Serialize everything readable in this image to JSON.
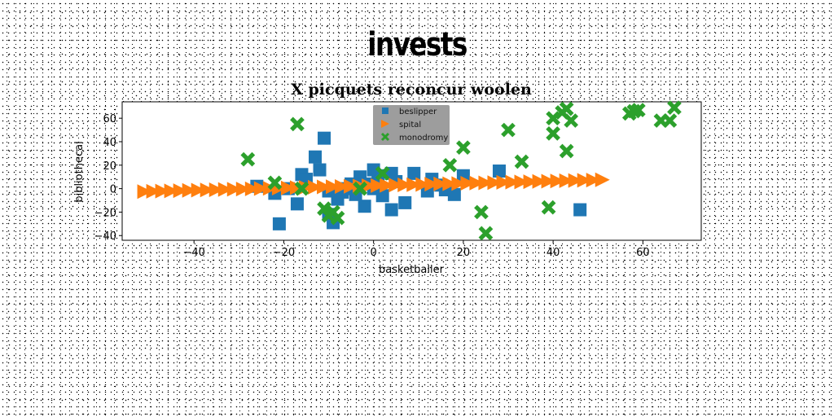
{
  "heading": "invests",
  "chart_data": {
    "type": "scatter",
    "title": "X picquets reconcur woolen",
    "xlabel": "basketballer",
    "ylabel": "bibliothecal",
    "xlim": [
      -56,
      73
    ],
    "ylim": [
      -44,
      74
    ],
    "xticks": [
      -40,
      -20,
      0,
      20,
      40,
      60
    ],
    "yticks": [
      -40,
      -20,
      0,
      20,
      40,
      60
    ],
    "grid": false,
    "legend_position": "top-center",
    "series": [
      {
        "name": "beslipper",
        "marker": "square",
        "color": "#1f77b4",
        "points": [
          [
            -21,
            -30
          ],
          [
            -22,
            -4
          ],
          [
            -26,
            2
          ],
          [
            -19,
            0
          ],
          [
            -17,
            -13
          ],
          [
            -16,
            12
          ],
          [
            -15,
            8
          ],
          [
            -13,
            27
          ],
          [
            -12,
            16
          ],
          [
            -11,
            43
          ],
          [
            -10,
            -2
          ],
          [
            -10,
            -22
          ],
          [
            -9,
            -29
          ],
          [
            -8,
            -9
          ],
          [
            -7,
            -3
          ],
          [
            -6,
            0
          ],
          [
            -5,
            4
          ],
          [
            -4,
            -5
          ],
          [
            -3,
            10
          ],
          [
            -2,
            -15
          ],
          [
            -1,
            4
          ],
          [
            0,
            0
          ],
          [
            0,
            16
          ],
          [
            1,
            11
          ],
          [
            2,
            -6
          ],
          [
            4,
            -18
          ],
          [
            4,
            13
          ],
          [
            5,
            6
          ],
          [
            7,
            -12
          ],
          [
            9,
            13
          ],
          [
            12,
            -2
          ],
          [
            13,
            8
          ],
          [
            15,
            3
          ],
          [
            16,
            -1
          ],
          [
            18,
            -5
          ],
          [
            20,
            11
          ],
          [
            28,
            15
          ],
          [
            46,
            -18
          ]
        ]
      },
      {
        "name": "spital",
        "marker": "triangle-right",
        "color": "#ff7f0e",
        "line": {
          "x_start": -51,
          "x_end": 51,
          "slope": 0.098,
          "intercept": 2.5,
          "count": 52
        }
      },
      {
        "name": "monodromy",
        "marker": "x",
        "color": "#2ca02c",
        "points": [
          [
            -28,
            25
          ],
          [
            -22,
            5
          ],
          [
            -17,
            55
          ],
          [
            -16,
            0
          ],
          [
            -11,
            -17
          ],
          [
            -10,
            -23
          ],
          [
            -9,
            -20
          ],
          [
            -8,
            -25
          ],
          [
            -3,
            0
          ],
          [
            2,
            13
          ],
          [
            17,
            20
          ],
          [
            20,
            35
          ],
          [
            24,
            -20
          ],
          [
            25,
            -38
          ],
          [
            30,
            50
          ],
          [
            33,
            23
          ],
          [
            39,
            -16
          ],
          [
            40,
            47
          ],
          [
            40,
            60
          ],
          [
            42,
            65
          ],
          [
            43,
            32
          ],
          [
            43,
            68
          ],
          [
            44,
            58
          ],
          [
            57,
            64
          ],
          [
            58,
            66
          ],
          [
            59,
            67
          ],
          [
            64,
            58
          ],
          [
            66,
            58
          ],
          [
            67,
            69
          ]
        ]
      }
    ]
  }
}
